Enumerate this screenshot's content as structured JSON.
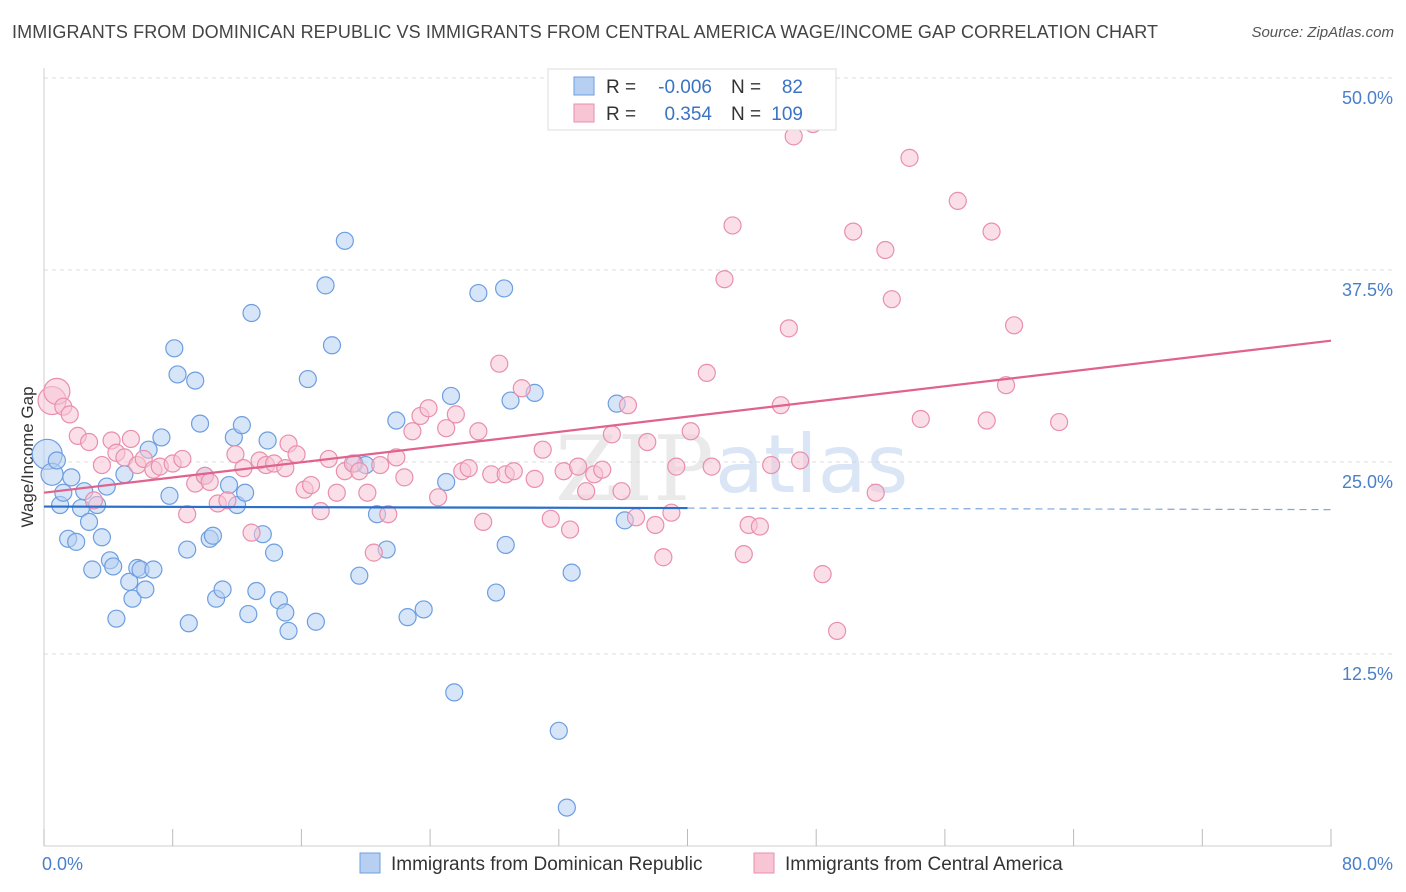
{
  "header": {
    "title": "IMMIGRANTS FROM DOMINICAN REPUBLIC VS IMMIGRANTS FROM CENTRAL AMERICA WAGE/INCOME GAP CORRELATION CHART",
    "source": "Source: ZipAtlas.com"
  },
  "watermark": {
    "zip": "ZIP",
    "atlas": "atlas"
  },
  "legend": {
    "rows": [
      {
        "r_label": "R =",
        "r_value": "-0.006",
        "n_label": "N =",
        "n_value": "82"
      },
      {
        "r_label": "R =",
        "r_value": "0.354",
        "n_label": "N =",
        "n_value": "109"
      }
    ]
  },
  "colors": {
    "blue_fill": "#b7d0f2",
    "blue_stroke": "#6d9ee0",
    "blue_line": "#2a6fc9",
    "pink_fill": "#f8c5d5",
    "pink_stroke": "#e98fac",
    "pink_line": "#e0628d",
    "grid": "#dcdcdc",
    "tick_text": "#4a7fc9"
  },
  "chart_data": {
    "type": "scatter",
    "title": "IMMIGRANTS FROM DOMINICAN REPUBLIC VS IMMIGRANTS FROM CENTRAL AMERICA WAGE/INCOME GAP CORRELATION CHART",
    "xlabel": "",
    "ylabel": "Wage/Income Gap",
    "xlim": [
      0,
      80
    ],
    "ylim": [
      0,
      50
    ],
    "x_tick_labels": [
      "0.0%",
      "80.0%"
    ],
    "y_ticks": [
      12.5,
      25.0,
      37.5,
      50.0
    ],
    "y_tick_labels": [
      "12.5%",
      "25.0%",
      "37.5%",
      "50.0%"
    ],
    "grid": true,
    "legend_position": "top-center",
    "series": [
      {
        "name": "Immigrants from Dominican Republic",
        "color": "blue",
        "r": -0.006,
        "n": 82,
        "trend": {
          "x0": 0,
          "y0": 22.1,
          "x1": 40,
          "y1": 22.0,
          "dashed_to_x": 80,
          "dashed_y": 21.9
        },
        "points": [
          [
            0.2,
            25.5
          ],
          [
            0.5,
            24.2
          ],
          [
            0.8,
            25.1
          ],
          [
            1.0,
            22.2
          ],
          [
            1.2,
            23.0
          ],
          [
            1.5,
            20.0
          ],
          [
            1.7,
            24.0
          ],
          [
            2.0,
            19.8
          ],
          [
            2.3,
            22.0
          ],
          [
            2.5,
            23.1
          ],
          [
            2.8,
            21.1
          ],
          [
            3.0,
            18.0
          ],
          [
            3.3,
            22.2
          ],
          [
            3.6,
            20.1
          ],
          [
            3.9,
            23.4
          ],
          [
            4.1,
            18.6
          ],
          [
            4.3,
            18.2
          ],
          [
            4.5,
            14.8
          ],
          [
            5.0,
            24.2
          ],
          [
            5.3,
            17.2
          ],
          [
            5.5,
            16.1
          ],
          [
            5.8,
            18.1
          ],
          [
            6.0,
            18.0
          ],
          [
            6.3,
            16.7
          ],
          [
            6.5,
            25.8
          ],
          [
            6.8,
            18.0
          ],
          [
            7.3,
            26.6
          ],
          [
            7.8,
            22.8
          ],
          [
            8.1,
            32.4
          ],
          [
            8.3,
            30.7
          ],
          [
            8.9,
            19.3
          ],
          [
            9.0,
            14.5
          ],
          [
            9.4,
            30.3
          ],
          [
            9.7,
            27.5
          ],
          [
            10.0,
            24.1
          ],
          [
            10.3,
            20.0
          ],
          [
            10.5,
            20.2
          ],
          [
            10.7,
            16.1
          ],
          [
            11.1,
            16.7
          ],
          [
            11.5,
            23.5
          ],
          [
            11.8,
            26.6
          ],
          [
            12.0,
            22.2
          ],
          [
            12.3,
            27.4
          ],
          [
            12.5,
            23.0
          ],
          [
            12.7,
            15.1
          ],
          [
            12.9,
            34.7
          ],
          [
            13.2,
            16.6
          ],
          [
            13.6,
            20.3
          ],
          [
            13.9,
            26.4
          ],
          [
            14.3,
            19.1
          ],
          [
            14.6,
            16.0
          ],
          [
            15.0,
            15.2
          ],
          [
            15.2,
            14.0
          ],
          [
            16.4,
            30.4
          ],
          [
            16.9,
            14.6
          ],
          [
            17.5,
            36.5
          ],
          [
            17.9,
            32.6
          ],
          [
            18.7,
            39.4
          ],
          [
            19.3,
            24.9
          ],
          [
            19.6,
            17.6
          ],
          [
            20.0,
            24.8
          ],
          [
            20.7,
            21.6
          ],
          [
            21.3,
            19.3
          ],
          [
            21.9,
            27.7
          ],
          [
            22.6,
            14.9
          ],
          [
            23.6,
            15.4
          ],
          [
            25.0,
            23.7
          ],
          [
            25.3,
            29.3
          ],
          [
            25.5,
            10.0
          ],
          [
            27.0,
            36.0
          ],
          [
            28.1,
            16.5
          ],
          [
            28.6,
            36.3
          ],
          [
            28.7,
            19.6
          ],
          [
            29.0,
            29.0
          ],
          [
            30.5,
            29.5
          ],
          [
            32.0,
            7.5
          ],
          [
            32.5,
            2.5
          ],
          [
            32.8,
            17.8
          ],
          [
            35.6,
            28.8
          ],
          [
            36.1,
            21.2
          ]
        ]
      },
      {
        "name": "Immigrants from Central America",
        "color": "pink",
        "r": 0.354,
        "n": 109,
        "trend": {
          "x0": 0,
          "y0": 23.0,
          "x1": 80,
          "y1": 32.9
        },
        "points": [
          [
            0.5,
            29.0
          ],
          [
            0.8,
            29.6
          ],
          [
            1.2,
            28.6
          ],
          [
            1.6,
            28.1
          ],
          [
            2.1,
            26.7
          ],
          [
            2.8,
            26.3
          ],
          [
            3.1,
            22.5
          ],
          [
            3.6,
            24.8
          ],
          [
            4.2,
            26.4
          ],
          [
            4.5,
            25.6
          ],
          [
            5.0,
            25.3
          ],
          [
            5.4,
            26.5
          ],
          [
            5.8,
            24.8
          ],
          [
            6.2,
            25.2
          ],
          [
            6.8,
            24.5
          ],
          [
            7.2,
            24.7
          ],
          [
            8.0,
            24.9
          ],
          [
            8.6,
            25.2
          ],
          [
            8.9,
            21.6
          ],
          [
            9.4,
            23.6
          ],
          [
            10.0,
            24.1
          ],
          [
            10.3,
            23.7
          ],
          [
            10.8,
            22.3
          ],
          [
            11.4,
            22.5
          ],
          [
            11.9,
            25.5
          ],
          [
            12.4,
            24.6
          ],
          [
            12.9,
            20.4
          ],
          [
            13.4,
            25.1
          ],
          [
            13.8,
            24.8
          ],
          [
            14.3,
            24.9
          ],
          [
            15.0,
            24.6
          ],
          [
            15.2,
            26.2
          ],
          [
            15.7,
            25.5
          ],
          [
            16.2,
            23.2
          ],
          [
            16.6,
            23.5
          ],
          [
            17.2,
            21.8
          ],
          [
            17.7,
            25.2
          ],
          [
            18.2,
            23.0
          ],
          [
            18.7,
            24.4
          ],
          [
            19.2,
            24.9
          ],
          [
            19.6,
            24.4
          ],
          [
            20.1,
            23.0
          ],
          [
            20.5,
            19.1
          ],
          [
            20.9,
            24.8
          ],
          [
            21.4,
            21.6
          ],
          [
            21.9,
            25.3
          ],
          [
            22.4,
            24.0
          ],
          [
            22.9,
            27.0
          ],
          [
            23.4,
            28.0
          ],
          [
            23.9,
            28.5
          ],
          [
            24.5,
            22.7
          ],
          [
            25.0,
            27.2
          ],
          [
            25.6,
            28.1
          ],
          [
            26.0,
            24.4
          ],
          [
            26.4,
            24.6
          ],
          [
            27.0,
            27.0
          ],
          [
            27.3,
            21.1
          ],
          [
            27.8,
            24.2
          ],
          [
            28.3,
            31.4
          ],
          [
            28.7,
            24.2
          ],
          [
            29.2,
            24.4
          ],
          [
            29.7,
            29.8
          ],
          [
            30.5,
            23.9
          ],
          [
            31.0,
            25.8
          ],
          [
            31.5,
            21.3
          ],
          [
            32.3,
            24.4
          ],
          [
            32.7,
            20.6
          ],
          [
            33.2,
            24.7
          ],
          [
            33.7,
            23.1
          ],
          [
            34.2,
            24.2
          ],
          [
            34.7,
            24.5
          ],
          [
            35.3,
            26.8
          ],
          [
            35.9,
            23.1
          ],
          [
            36.3,
            28.7
          ],
          [
            36.8,
            21.4
          ],
          [
            37.5,
            26.3
          ],
          [
            38.0,
            20.9
          ],
          [
            38.5,
            18.8
          ],
          [
            39.0,
            21.7
          ],
          [
            39.3,
            24.7
          ],
          [
            40.2,
            27.0
          ],
          [
            41.2,
            30.8
          ],
          [
            41.5,
            24.7
          ],
          [
            42.3,
            36.9
          ],
          [
            42.8,
            40.4
          ],
          [
            43.5,
            19.0
          ],
          [
            43.8,
            20.9
          ],
          [
            44.5,
            20.8
          ],
          [
            45.2,
            24.8
          ],
          [
            45.8,
            28.7
          ],
          [
            46.3,
            33.7
          ],
          [
            46.6,
            46.2
          ],
          [
            47.0,
            25.1
          ],
          [
            47.8,
            47.0
          ],
          [
            48.4,
            17.7
          ],
          [
            49.3,
            14.0
          ],
          [
            50.3,
            40.0
          ],
          [
            51.7,
            23.0
          ],
          [
            52.3,
            38.8
          ],
          [
            52.7,
            35.6
          ],
          [
            53.8,
            44.8
          ],
          [
            54.5,
            27.8
          ],
          [
            56.8,
            42.0
          ],
          [
            58.6,
            27.7
          ],
          [
            58.9,
            40.0
          ],
          [
            59.8,
            30.0
          ],
          [
            60.3,
            33.9
          ],
          [
            63.1,
            27.6
          ]
        ]
      }
    ]
  },
  "bottom_legend": {
    "items": [
      {
        "label": "Immigrants from Dominican Republic"
      },
      {
        "label": "Immigrants from Central America"
      }
    ]
  }
}
